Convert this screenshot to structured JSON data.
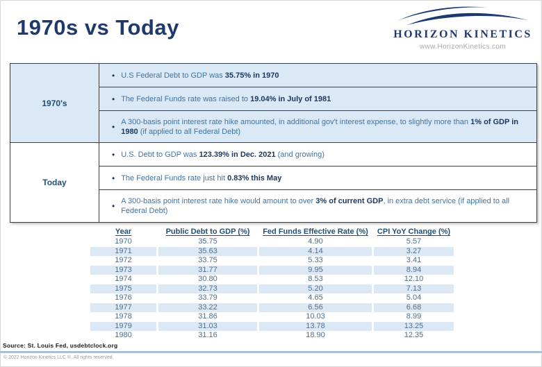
{
  "page": {
    "title": "1970s vs Today",
    "logo": {
      "name": "HORIZON KINETICS",
      "website": "www.HorizonKinetics.com"
    }
  },
  "comparison": {
    "groups": [
      {
        "label": "1970's",
        "bullets": [
          {
            "pre": "U.S Federal Debt to GDP was ",
            "bold": "35.75% in 1970",
            "post": ""
          },
          {
            "pre": "The Federal Funds rate was raised to ",
            "bold": "19.04% in July of 1981",
            "post": ""
          },
          {
            "pre": "A 300-basis point interest rate hike amounted, in additional gov't interest expense, to slightly more than ",
            "bold": "1% of GDP in 1980",
            "post": " (if applied to all Federal Debt)"
          }
        ]
      },
      {
        "label": "Today",
        "bullets": [
          {
            "pre": "U.S. Debt to GDP was ",
            "bold": "123.39% in Dec. 2021",
            "post": " (and growing)"
          },
          {
            "pre": "The Federal Funds rate just hit ",
            "bold": "0.83% this May",
            "post": ""
          },
          {
            "pre": "A 300-basis point interest rate hike would amount to over ",
            "bold": "3% of current GDP",
            "post": ", in extra debt service (if applied to all Federal Debt)"
          }
        ]
      }
    ]
  },
  "data_table": {
    "headers": [
      "Year",
      "Public Debt to GDP (%)",
      "Fed Funds Effective Rate (%)",
      "CPI YoY Change (%)"
    ],
    "rows": [
      [
        "1970",
        "35.75",
        "4.90",
        "5.57"
      ],
      [
        "1971",
        "35.63",
        "4.14",
        "3.27"
      ],
      [
        "1972",
        "33.75",
        "5.33",
        "3.41"
      ],
      [
        "1973",
        "31.77",
        "9.95",
        "8.94"
      ],
      [
        "1974",
        "30.80",
        "8.53",
        "12.10"
      ],
      [
        "1975",
        "32.73",
        "5.20",
        "7.13"
      ],
      [
        "1976",
        "33.79",
        "4.65",
        "5.04"
      ],
      [
        "1977",
        "33.22",
        "6.56",
        "6.68"
      ],
      [
        "1978",
        "31.86",
        "10.03",
        "8.99"
      ],
      [
        "1979",
        "31.03",
        "13.78",
        "13.25"
      ],
      [
        "1980",
        "31.16",
        "18.90",
        "12.35"
      ]
    ]
  },
  "footer": {
    "source": "Source: St. Louis Fed, usdebtclock.org",
    "copyright": "© 2022 Horizon Kinetics LLC ®. All rights reserved."
  },
  "colors": {
    "brand_navy": "#1e3a6d",
    "bullet_text_blue": "#3f74a3",
    "bullet_bold_navy": "#17375e",
    "section_fill_blue": "#dbe8f5",
    "table_stripe_blue": "#dce9f5",
    "table_header_navy": "#1f4e79",
    "table_data_slate": "#4f6d8c",
    "footer_divider_steel": "#a9bfd4"
  }
}
